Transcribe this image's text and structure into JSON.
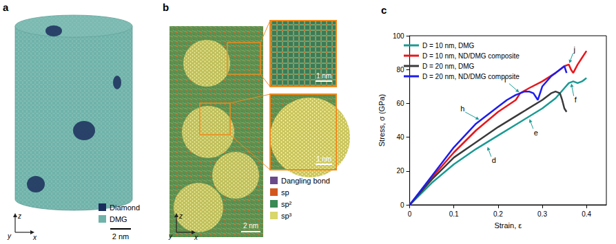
{
  "panels": [
    {
      "label": "a",
      "legend": [
        {
          "name": "Diamond",
          "color": "#1b2d5c"
        },
        {
          "name": "DMG",
          "color": "#6fb3aa"
        }
      ],
      "scale_bar": "2 nm",
      "axes": [
        "z",
        "y",
        "x"
      ]
    },
    {
      "label": "b",
      "legend": [
        {
          "name": "Dangling bond",
          "color": "#6b4a8a"
        },
        {
          "name": "sp",
          "color": "#d4581e"
        },
        {
          "name": "sp²",
          "color": "#3a8a55"
        },
        {
          "name": "sp³",
          "color": "#d9d66a"
        }
      ],
      "scale_bar": "2 nm",
      "inset_scale_bars": [
        "1 nm",
        "1 nm"
      ],
      "axes": [
        "z",
        "y",
        "x"
      ]
    }
  ],
  "chart_data": {
    "type": "line",
    "title": "c",
    "x_label": "Strain, ε",
    "y_label": "Stress, σ (GPa)",
    "xlim": [
      0,
      0.445
    ],
    "xticks": [
      0,
      0.1,
      0.2,
      0.3,
      0.4
    ],
    "ylim": [
      0,
      100
    ],
    "yticks": [
      0,
      20,
      40,
      60,
      80,
      100
    ],
    "grid": false,
    "legend": "upper left",
    "series": [
      {
        "name": "D = 10 nm, DMG",
        "color": "#1a9a93",
        "x": [
          0,
          0.05,
          0.1,
          0.15,
          0.2,
          0.25,
          0.3,
          0.33,
          0.35,
          0.36,
          0.37,
          0.38,
          0.39,
          0.4
        ],
        "values": [
          0,
          13,
          24,
          33,
          41,
          49,
          57,
          63,
          69,
          72,
          73,
          72,
          73,
          75
        ]
      },
      {
        "name": "D = 10 nm, ND/DMG composite",
        "color": "#e8161b",
        "x": [
          0,
          0.05,
          0.1,
          0.15,
          0.2,
          0.24,
          0.25,
          0.27,
          0.3,
          0.33,
          0.35,
          0.36,
          0.365,
          0.37,
          0.38,
          0.39,
          0.4
        ],
        "values": [
          0,
          16,
          31,
          44,
          55,
          62,
          66,
          69,
          73,
          78,
          82,
          83,
          80,
          78,
          83,
          87,
          91
        ]
      },
      {
        "name": "D = 20 nm, DMG",
        "color": "#3a3a3a",
        "x": [
          0,
          0.05,
          0.1,
          0.15,
          0.2,
          0.25,
          0.3,
          0.32,
          0.33,
          0.34,
          0.345,
          0.35,
          0.355
        ],
        "values": [
          0,
          15,
          28,
          37,
          46,
          54,
          62,
          66,
          67,
          66,
          62,
          57,
          55
        ]
      },
      {
        "name": "D = 20 nm, ND/DMG composite",
        "color": "#1c1cf0",
        "x": [
          0,
          0.05,
          0.1,
          0.15,
          0.2,
          0.22,
          0.24,
          0.26,
          0.27,
          0.28,
          0.29,
          0.3,
          0.32,
          0.34,
          0.35,
          0.355
        ],
        "values": [
          0,
          17,
          34,
          48,
          58,
          62,
          65,
          67,
          67,
          66,
          62,
          70,
          76,
          80,
          82,
          78
        ]
      }
    ],
    "annotations": [
      {
        "text": "d",
        "x": 0.175,
        "y": 35
      },
      {
        "text": "e",
        "x": 0.27,
        "y": 51.5
      },
      {
        "text": "f",
        "x": 0.365,
        "y": 72.5
      },
      {
        "text": "h",
        "x": 0.16,
        "y": 50
      },
      {
        "text": "i",
        "x": 0.25,
        "y": 66
      },
      {
        "text": "j",
        "x": 0.36,
        "y": 83
      }
    ]
  }
}
